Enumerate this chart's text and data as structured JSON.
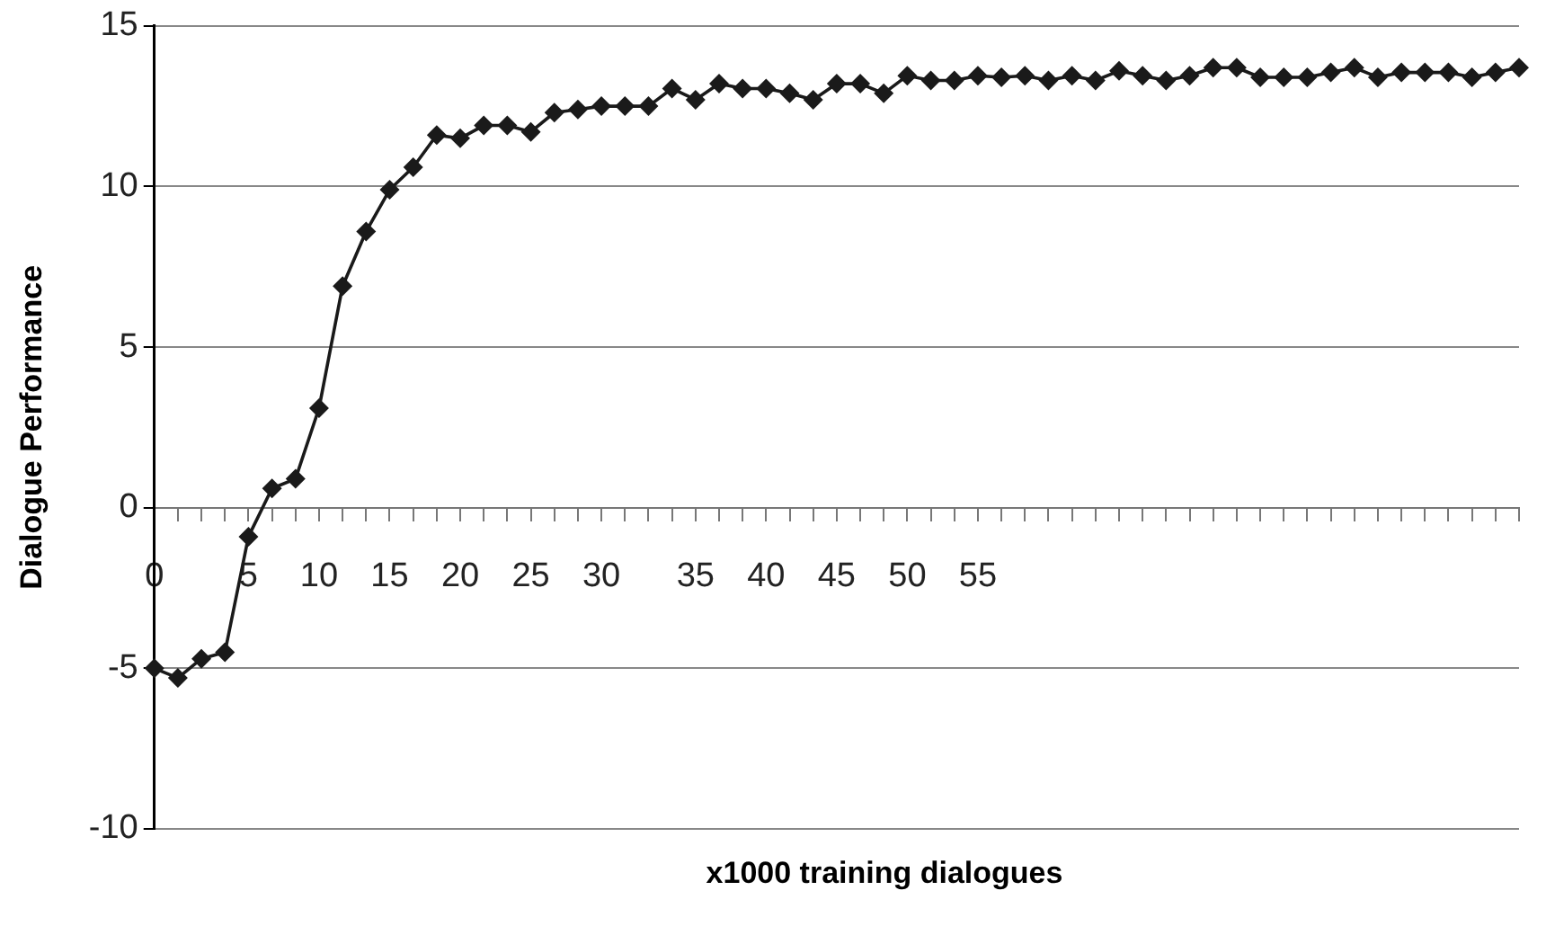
{
  "chart_data": {
    "type": "line",
    "xlabel": "x1000 training dialogues",
    "ylabel": "Dialogue Performance",
    "categories": [
      "0",
      null,
      null,
      null,
      "5",
      null,
      null,
      "10",
      null,
      null,
      "15",
      null,
      null,
      "20",
      null,
      null,
      "25",
      null,
      null,
      "30",
      null,
      null,
      null,
      "35",
      null,
      null,
      "40",
      null,
      null,
      "45",
      null,
      null,
      "50",
      null,
      null,
      "55",
      null,
      null,
      null,
      null,
      null,
      null,
      null,
      null,
      null,
      null,
      null,
      null,
      null,
      null,
      null,
      null,
      null,
      null,
      null,
      null,
      null,
      null,
      null
    ],
    "series": [
      {
        "color": "#1a1a1a",
        "values": [
          -5.0,
          -5.3,
          -4.7,
          -4.5,
          -0.9,
          0.6,
          0.9,
          3.1,
          6.9,
          8.6,
          9.9,
          10.6,
          11.6,
          11.5,
          11.9,
          11.9,
          11.7,
          12.3,
          12.4,
          12.5,
          12.5,
          12.5,
          13.05,
          12.7,
          13.2,
          13.05,
          13.05,
          12.9,
          12.7,
          13.2,
          13.2,
          12.9,
          13.45,
          13.3,
          13.3,
          13.45,
          13.4,
          13.45,
          13.3,
          13.45,
          13.3,
          13.6,
          13.45,
          13.3,
          13.45,
          13.7,
          13.7,
          13.4,
          13.4,
          13.4,
          13.55,
          13.7,
          13.4,
          13.55,
          13.55,
          13.55,
          13.4,
          13.55,
          13.7
        ]
      }
    ],
    "ylim": [
      -10,
      15
    ],
    "yticks": [
      -10,
      -5,
      0,
      5,
      10,
      15
    ],
    "grid": "y",
    "marker": "diamond",
    "line_style": "solid"
  }
}
